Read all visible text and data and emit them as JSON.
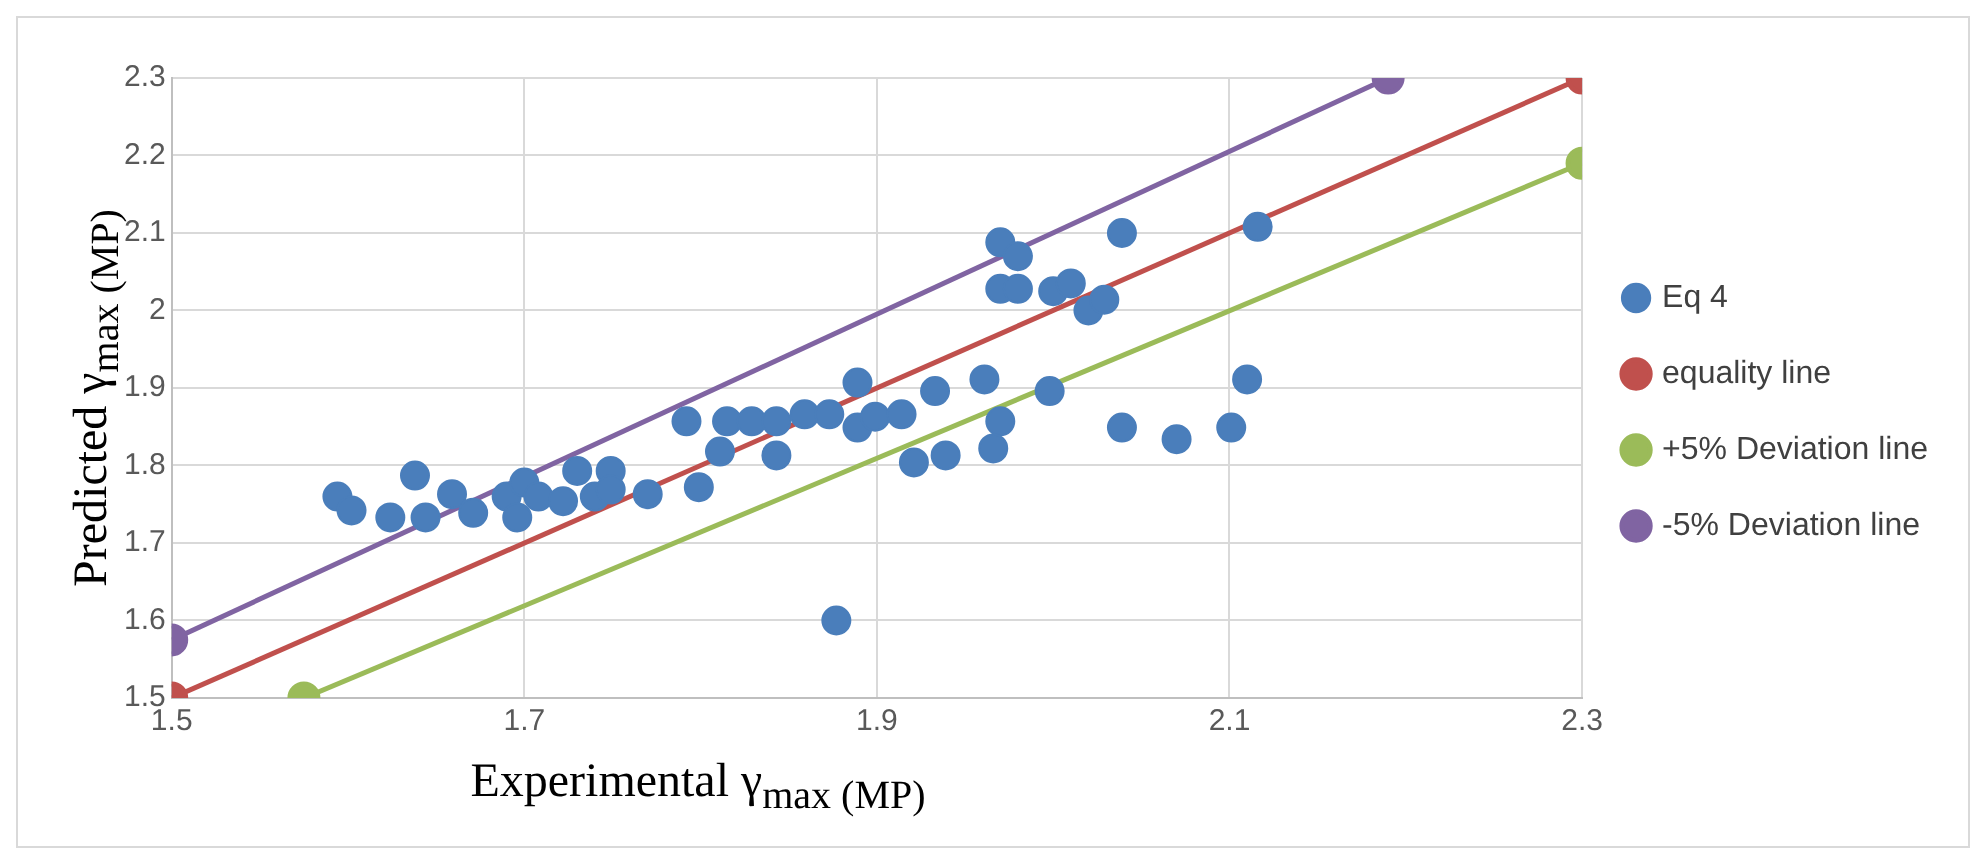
{
  "chart_data": {
    "type": "scatter",
    "xlabel": "Experimental γ$_{max (MP)}$",
    "ylabel": "Predicted γ$_{max (MP)}$",
    "xlim": [
      1.5,
      2.3
    ],
    "xticks": [
      1.5,
      1.7,
      1.9,
      2.1,
      2.3
    ],
    "ylim": [
      1.5,
      2.3
    ],
    "yticks": [
      1.5,
      1.6,
      1.7,
      1.8,
      1.9,
      2,
      2.1,
      2.2,
      2.3
    ],
    "grid": true,
    "legend": "right",
    "series": [
      {
        "name": "Eq 4",
        "marker": "circle",
        "color": "#4a7ebb",
        "x": [
          1.594,
          1.602,
          1.624,
          1.638,
          1.644,
          1.659,
          1.671,
          1.69,
          1.7,
          1.696,
          1.708,
          1.73,
          1.722,
          1.74,
          1.749,
          1.749,
          1.77,
          1.799,
          1.792,
          1.815,
          1.843,
          1.811,
          1.829,
          1.843,
          1.859,
          1.873,
          1.889,
          1.889,
          1.899,
          1.914,
          1.933,
          1.921,
          1.939,
          1.961,
          1.97,
          1.966,
          1.998,
          2.039,
          1.97,
          1.98,
          1.97,
          1.98,
          2.039,
          2.0,
          2.01,
          2.02,
          2.029,
          2.116,
          2.11,
          2.101,
          2.07,
          1.877
        ],
        "values": [
          1.76,
          1.742,
          1.733,
          1.787,
          1.733,
          1.763,
          1.739,
          1.76,
          1.778,
          1.733,
          1.76,
          1.793,
          1.754,
          1.76,
          1.793,
          1.769,
          1.763,
          1.772,
          1.857,
          1.857,
          1.813,
          1.818,
          1.857,
          1.857,
          1.866,
          1.866,
          1.907,
          1.849,
          1.863,
          1.866,
          1.896,
          1.804,
          1.813,
          1.911,
          1.857,
          1.822,
          1.896,
          1.849,
          2.088,
          2.07,
          2.028,
          2.028,
          2.1,
          2.025,
          2.035,
          2.0,
          2.014,
          2.108,
          1.911,
          1.849,
          1.834,
          1.6
        ]
      },
      {
        "name": "equality line",
        "type": "line",
        "marker": "circle",
        "color": "#c0504d",
        "x": [
          1.5,
          2.3
        ],
        "values": [
          1.5,
          2.3
        ]
      },
      {
        "name": "+5% Deviation line",
        "type": "line",
        "marker": "circle",
        "color": "#9bbb59",
        "x": [
          1.575,
          2.3
        ],
        "values": [
          1.5,
          2.19
        ]
      },
      {
        "name": "-5% Deviation line",
        "type": "line",
        "marker": "circle",
        "color": "#8064a2",
        "x": [
          1.5,
          2.19
        ],
        "values": [
          1.575,
          2.3
        ]
      }
    ]
  }
}
